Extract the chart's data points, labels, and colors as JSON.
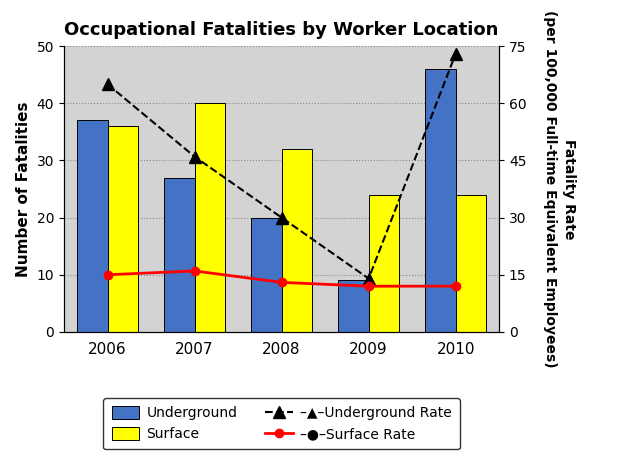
{
  "title": "Occupational Fatalities by Worker Location",
  "years": [
    2006,
    2007,
    2008,
    2009,
    2010
  ],
  "underground_fatalities": [
    37,
    27,
    20,
    9,
    46
  ],
  "surface_fatalities": [
    36,
    40,
    32,
    24,
    24
  ],
  "underground_rate": [
    65,
    46,
    30,
    14,
    73
  ],
  "surface_rate": [
    15,
    16,
    13,
    12,
    12
  ],
  "ylabel_left": "Number of Fatalities",
  "ylabel_right_top": "Fatality Rate",
  "ylabel_right_bottom": "(per 100,000 Full-time Equivalent Employees)",
  "ylim_left": [
    0,
    50
  ],
  "ylim_right": [
    0,
    75
  ],
  "yticks_left": [
    0,
    10,
    20,
    30,
    40,
    50
  ],
  "yticks_right": [
    0,
    15,
    30,
    45,
    60,
    75
  ],
  "bar_width": 0.35,
  "underground_color": "#4472C4",
  "surface_color": "#FFFF00",
  "underground_rate_color": "#000000",
  "surface_rate_color": "#FF0000",
  "bg_color": "#D3D3D3",
  "grid_color": "#AAAAAA"
}
